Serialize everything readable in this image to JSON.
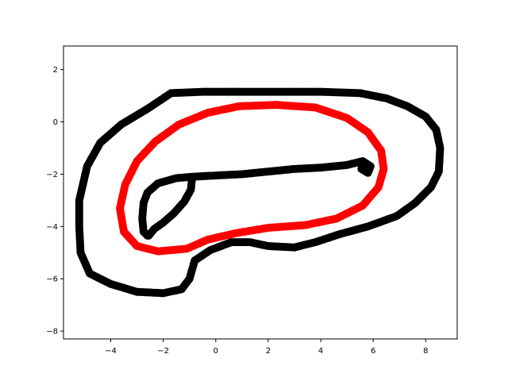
{
  "chart_data": {
    "type": "scatter",
    "title": "",
    "xlabel": "",
    "ylabel": "",
    "xlim": [
      -5.8,
      9.2
    ],
    "ylim": [
      -8.3,
      2.9
    ],
    "xticks": [
      -4,
      -2,
      0,
      2,
      4,
      6,
      8
    ],
    "yticks": [
      2,
      0,
      -2,
      -4,
      -6,
      -8
    ],
    "xtick_labels": [
      "−4",
      "−2",
      "0",
      "2",
      "4",
      "6",
      "8"
    ],
    "ytick_labels": [
      "2",
      "0",
      "−2",
      "−4",
      "−6",
      "−8"
    ],
    "grid": false,
    "series": [
      {
        "color": "#000000",
        "closed": true,
        "points": [
          [
            0.8,
            1.15
          ],
          [
            2.5,
            1.15
          ],
          [
            4.0,
            1.15
          ],
          [
            5.5,
            1.1
          ],
          [
            6.5,
            0.9
          ],
          [
            7.3,
            0.6
          ],
          [
            8.0,
            0.2
          ],
          [
            8.4,
            -0.3
          ],
          [
            8.55,
            -1.0
          ],
          [
            8.5,
            -1.9
          ],
          [
            8.2,
            -2.5
          ],
          [
            7.6,
            -3.1
          ],
          [
            6.9,
            -3.6
          ],
          [
            5.8,
            -4.0
          ],
          [
            4.7,
            -4.3
          ],
          [
            3.8,
            -4.6
          ],
          [
            3.0,
            -4.8
          ],
          [
            2.0,
            -4.75
          ],
          [
            1.3,
            -4.6
          ],
          [
            0.6,
            -4.6
          ],
          [
            -0.2,
            -4.9
          ],
          [
            -0.8,
            -5.3
          ],
          [
            -1.0,
            -6.0
          ],
          [
            -1.3,
            -6.4
          ],
          [
            -2.0,
            -6.55
          ],
          [
            -3.0,
            -6.5
          ],
          [
            -4.0,
            -6.2
          ],
          [
            -4.8,
            -5.8
          ],
          [
            -5.15,
            -5.0
          ],
          [
            -5.2,
            -4.0
          ],
          [
            -5.2,
            -3.0
          ],
          [
            -4.9,
            -1.7
          ],
          [
            -4.4,
            -0.8
          ],
          [
            -3.6,
            -0.1
          ],
          [
            -2.6,
            0.5
          ],
          [
            -2.0,
            0.9
          ],
          [
            -1.7,
            1.1
          ],
          [
            -0.5,
            1.15
          ],
          [
            0.5,
            1.15
          ]
        ]
      },
      {
        "color": "#000000",
        "closed": false,
        "points": [
          [
            -2.6,
            -4.35
          ],
          [
            -2.75,
            -4.2
          ],
          [
            -2.8,
            -3.7
          ],
          [
            -2.75,
            -3.1
          ],
          [
            -2.6,
            -2.7
          ],
          [
            -2.2,
            -2.35
          ],
          [
            -1.5,
            -2.15
          ],
          [
            -0.9,
            -2.1
          ],
          [
            0.0,
            -2.05
          ],
          [
            1.0,
            -2.0
          ],
          [
            2.0,
            -1.9
          ],
          [
            3.0,
            -1.8
          ],
          [
            4.0,
            -1.75
          ],
          [
            5.0,
            -1.65
          ],
          [
            5.6,
            -1.5
          ],
          [
            5.9,
            -1.7
          ],
          [
            5.8,
            -1.95
          ],
          [
            5.55,
            -1.8
          ],
          [
            5.6,
            -1.55
          ]
        ]
      },
      {
        "color": "#000000",
        "closed": false,
        "points": [
          [
            -0.9,
            -2.15
          ],
          [
            -0.95,
            -2.6
          ],
          [
            -1.2,
            -3.05
          ],
          [
            -1.6,
            -3.5
          ],
          [
            -2.0,
            -3.85
          ],
          [
            -2.35,
            -4.1
          ],
          [
            -2.55,
            -4.35
          ]
        ]
      },
      {
        "color": "#ff0000",
        "closed": true,
        "points": [
          [
            2.3,
            0.65
          ],
          [
            3.8,
            0.55
          ],
          [
            5.0,
            0.15
          ],
          [
            5.8,
            -0.4
          ],
          [
            6.3,
            -1.1
          ],
          [
            6.4,
            -1.8
          ],
          [
            6.2,
            -2.5
          ],
          [
            5.6,
            -3.2
          ],
          [
            4.6,
            -3.7
          ],
          [
            3.4,
            -3.95
          ],
          [
            2.0,
            -4.05
          ],
          [
            0.8,
            -4.25
          ],
          [
            -0.3,
            -4.5
          ],
          [
            -1.1,
            -4.85
          ],
          [
            -2.2,
            -4.95
          ],
          [
            -3.0,
            -4.75
          ],
          [
            -3.5,
            -4.2
          ],
          [
            -3.65,
            -3.3
          ],
          [
            -3.45,
            -2.4
          ],
          [
            -3.0,
            -1.5
          ],
          [
            -2.3,
            -0.75
          ],
          [
            -1.4,
            -0.1
          ],
          [
            -0.3,
            0.35
          ],
          [
            0.9,
            0.6
          ]
        ]
      }
    ]
  }
}
